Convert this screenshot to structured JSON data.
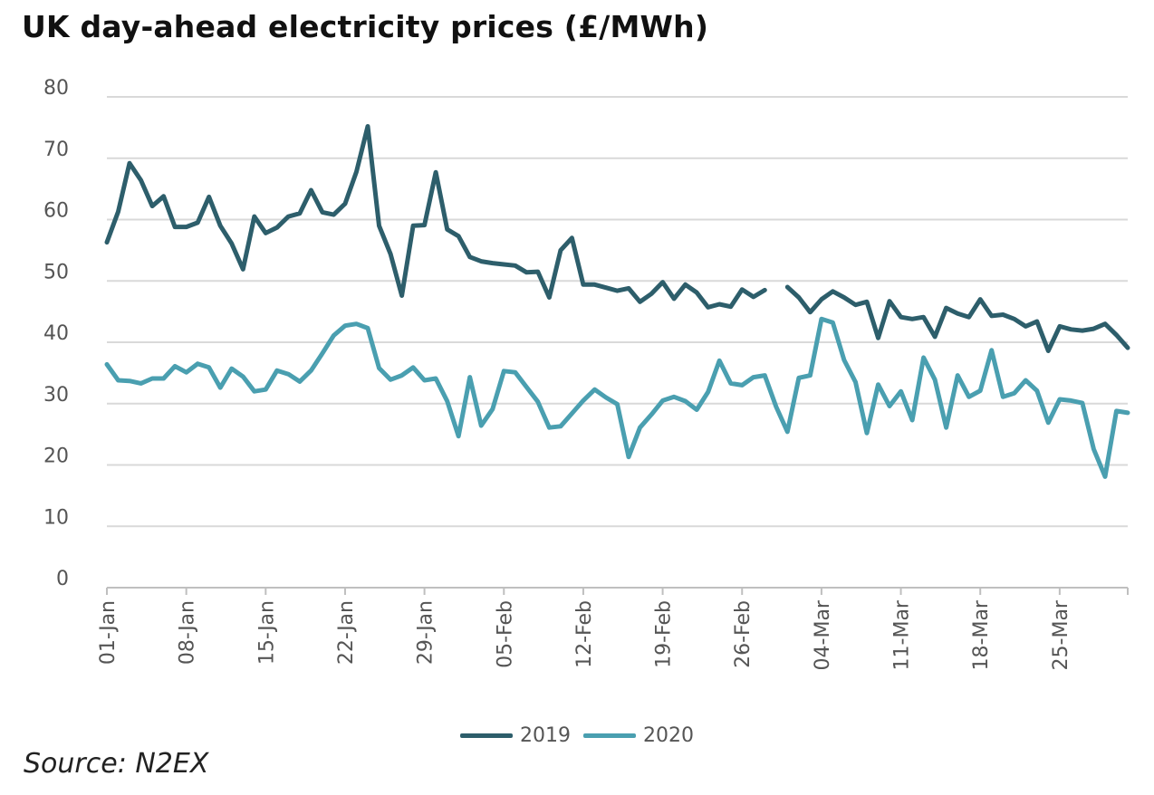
{
  "chart_data": {
    "type": "line",
    "title": "UK day-ahead electricity prices (£/MWh)",
    "source": "Source: N2EX",
    "ylim": [
      0,
      80
    ],
    "yticks": [
      0,
      10,
      20,
      30,
      40,
      50,
      60,
      70,
      80
    ],
    "grid": true,
    "legend_position": "bottom-center",
    "x": [
      "01-Jan",
      "02-Jan",
      "03-Jan",
      "04-Jan",
      "05-Jan",
      "06-Jan",
      "07-Jan",
      "08-Jan",
      "09-Jan",
      "10-Jan",
      "11-Jan",
      "12-Jan",
      "13-Jan",
      "14-Jan",
      "15-Jan",
      "16-Jan",
      "17-Jan",
      "18-Jan",
      "19-Jan",
      "20-Jan",
      "21-Jan",
      "22-Jan",
      "23-Jan",
      "24-Jan",
      "25-Jan",
      "26-Jan",
      "27-Jan",
      "28-Jan",
      "29-Jan",
      "30-Jan",
      "31-Jan",
      "01-Feb",
      "02-Feb",
      "03-Feb",
      "04-Feb",
      "05-Feb",
      "06-Feb",
      "07-Feb",
      "08-Feb",
      "09-Feb",
      "10-Feb",
      "11-Feb",
      "12-Feb",
      "13-Feb",
      "14-Feb",
      "15-Feb",
      "16-Feb",
      "17-Feb",
      "18-Feb",
      "19-Feb",
      "20-Feb",
      "21-Feb",
      "22-Feb",
      "23-Feb",
      "24-Feb",
      "25-Feb",
      "26-Feb",
      "27-Feb",
      "28-Feb",
      "29-Feb",
      "01-Mar",
      "02-Mar",
      "03-Mar",
      "04-Mar",
      "05-Mar",
      "06-Mar",
      "07-Mar",
      "08-Mar",
      "09-Mar",
      "10-Mar",
      "11-Mar",
      "12-Mar",
      "13-Mar",
      "14-Mar",
      "15-Mar",
      "16-Mar",
      "17-Mar",
      "18-Mar",
      "19-Mar",
      "20-Mar",
      "21-Mar",
      "22-Mar",
      "23-Mar",
      "24-Mar",
      "25-Mar",
      "26-Mar",
      "27-Mar",
      "28-Mar",
      "29-Mar",
      "30-Mar",
      "31-Mar"
    ],
    "xticks": [
      "01-Jan",
      "08-Jan",
      "15-Jan",
      "22-Jan",
      "29-Jan",
      "05-Feb",
      "12-Feb",
      "19-Feb",
      "26-Feb",
      "04-Mar",
      "11-Mar",
      "18-Mar",
      "25-Mar"
    ],
    "series": [
      {
        "name": "2019",
        "color": "#2d5e6b",
        "values": [
          56.3,
          61.3,
          69.2,
          66.4,
          62.2,
          63.8,
          58.8,
          58.8,
          59.5,
          63.7,
          59.0,
          56.1,
          51.9,
          60.5,
          57.8,
          58.7,
          60.5,
          61.0,
          64.8,
          61.2,
          60.8,
          62.6,
          67.8,
          75.2,
          59.0,
          54.4,
          47.6,
          59.0,
          59.1,
          67.7,
          58.4,
          57.3,
          53.9,
          53.2,
          52.9,
          52.7,
          52.5,
          51.4,
          51.5,
          47.3,
          55.0,
          57.0,
          49.4,
          49.4,
          48.9,
          48.4,
          48.8,
          46.6,
          47.9,
          49.8,
          47.1,
          49.4,
          48.1,
          45.7,
          46.2,
          45.8,
          48.6,
          47.4,
          48.5,
          null,
          49.0,
          47.3,
          44.9,
          47.0,
          48.3,
          47.3,
          46.1,
          46.6,
          40.7,
          46.7,
          44.1,
          43.8,
          44.1,
          40.9,
          45.6,
          44.7,
          44.1,
          47.0,
          44.3,
          44.5,
          43.8,
          42.6,
          43.4,
          38.6,
          42.6,
          42.1,
          41.9,
          42.2,
          43.0,
          41.2,
          39.1
        ]
      },
      {
        "name": "2020",
        "color": "#4a9fb0",
        "values": [
          36.4,
          33.8,
          33.7,
          33.3,
          34.1,
          34.1,
          36.1,
          35.1,
          36.5,
          35.9,
          32.6,
          35.7,
          34.4,
          32.0,
          32.3,
          35.4,
          34.8,
          33.6,
          35.4,
          38.2,
          41.1,
          42.7,
          43.0,
          42.3,
          35.8,
          33.9,
          34.6,
          35.9,
          33.8,
          34.1,
          30.4,
          24.7,
          34.3,
          26.4,
          29.1,
          35.3,
          35.1,
          32.7,
          30.3,
          26.1,
          26.3,
          28.4,
          30.5,
          32.3,
          31.0,
          29.9,
          21.3,
          26.1,
          28.2,
          30.5,
          31.1,
          30.4,
          29.0,
          31.9,
          37.0,
          33.3,
          33.0,
          34.3,
          34.6,
          29.5,
          25.4,
          34.2,
          34.6,
          43.8,
          43.2,
          37.1,
          33.5,
          25.2,
          33.1,
          29.6,
          32.0,
          27.3,
          37.5,
          33.9,
          26.1,
          34.6,
          31.1,
          32.1,
          38.7,
          31.1,
          31.7,
          33.8,
          32.1,
          26.9,
          30.7,
          30.5,
          30.1,
          22.6,
          18.1,
          28.8,
          28.5
        ]
      }
    ]
  }
}
